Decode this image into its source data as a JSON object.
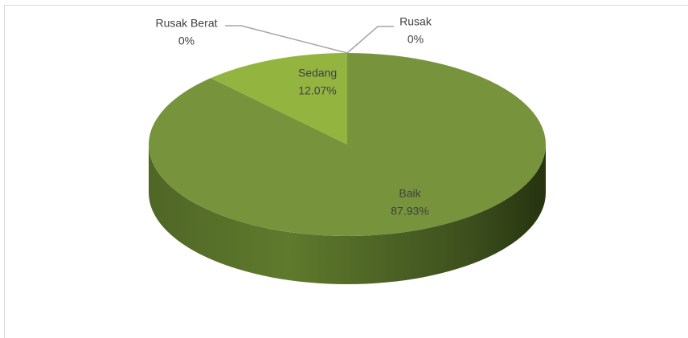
{
  "chart_data": {
    "type": "pie",
    "categories": [
      "Baik",
      "Sedang",
      "Rusak Berat",
      "Rusak"
    ],
    "values": [
      87.93,
      12.07,
      0,
      0
    ],
    "value_labels": [
      "87.93%",
      "12.07%",
      "0%",
      "0%"
    ],
    "colors": [
      "#77933c",
      "#93b43f",
      "#9bbb59",
      "#c3d69b"
    ]
  }
}
